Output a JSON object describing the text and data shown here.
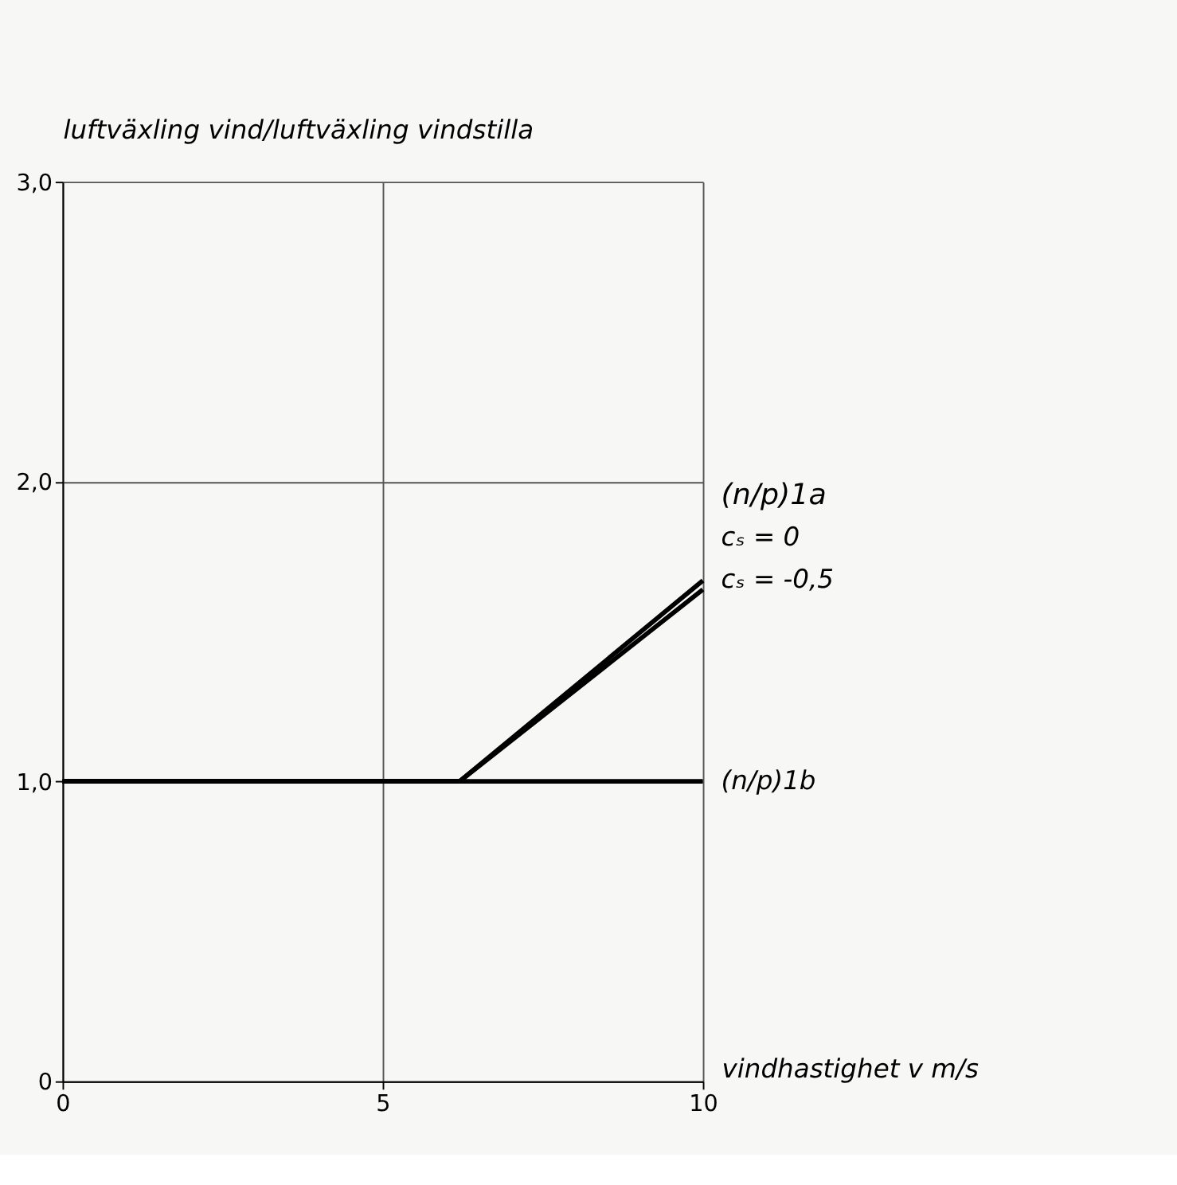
{
  "chart_data": {
    "type": "line",
    "ylabel": "luftväxling vind/luftväxling vindstilla",
    "xlabel": "vindhastighet v m/s",
    "xlim": [
      0,
      10
    ],
    "ylim": [
      0,
      3
    ],
    "xticks": [
      0,
      5,
      10
    ],
    "yticks": [
      0,
      {
        "value": 1,
        "label": "1,0"
      },
      {
        "value": 2,
        "label": "2,0"
      },
      {
        "value": 3,
        "label": "3,0"
      }
    ],
    "grid": true,
    "line_style": "solid",
    "marker": "none",
    "annotations": [
      "(n/p)1a"
    ],
    "series": [
      {
        "name": "cₛ = 0",
        "color": "#000000",
        "x": [
          0,
          6.2,
          10
        ],
        "values": [
          1,
          1,
          1.67
        ]
      },
      {
        "name": "cₛ = -0,5",
        "color": "#000000",
        "x": [
          0,
          6.2,
          10
        ],
        "values": [
          1,
          1,
          1.64
        ]
      },
      {
        "name": "(n/p)1b",
        "color": "#000000",
        "x": [
          0,
          10
        ],
        "values": [
          1,
          1
        ]
      }
    ]
  }
}
